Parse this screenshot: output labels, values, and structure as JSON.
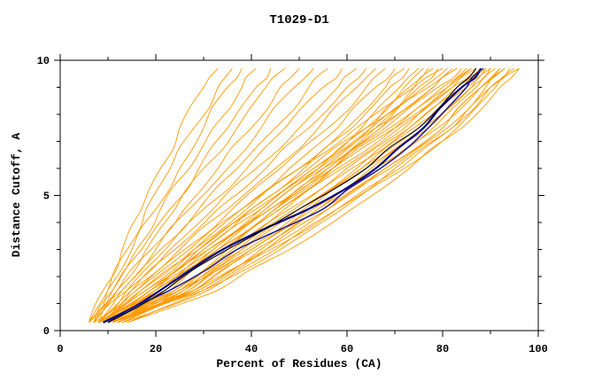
{
  "chart_data": {
    "type": "line",
    "title": "T1029-D1",
    "xlabel": "Percent of Residues (CA)",
    "ylabel": "Distance Cutoff, A",
    "xlim": [
      0,
      100
    ],
    "ylim": [
      0,
      10
    ],
    "x_major_ticks": [
      0,
      20,
      40,
      60,
      80,
      100
    ],
    "x_minor_step": 10,
    "y_major_ticks": [
      0,
      5,
      10
    ],
    "y_minor_step": 1,
    "grid": false,
    "legend": "none",
    "colors": {
      "model_lines": "#ff9900",
      "highlight_navy": "#000080",
      "highlight_navy2": "#1c1c9c",
      "highlight_black": "#000000"
    },
    "y_levels": [
      0.3,
      1.5,
      3,
      4.5,
      6,
      7.5,
      9,
      9.7
    ],
    "orange_series_x": [
      [
        6,
        9,
        13,
        17,
        21,
        25,
        30,
        33
      ],
      [
        6,
        10,
        14,
        18,
        23,
        28,
        33,
        36
      ],
      [
        7,
        10,
        15,
        20,
        25,
        30,
        35,
        38
      ],
      [
        7,
        11,
        16,
        21,
        27,
        32,
        38,
        41
      ],
      [
        6,
        11,
        17,
        23,
        29,
        35,
        41,
        44
      ],
      [
        8,
        12,
        18,
        24,
        30,
        37,
        43,
        47
      ],
      [
        7,
        12,
        19,
        26,
        33,
        40,
        46,
        50
      ],
      [
        8,
        13,
        20,
        27,
        35,
        42,
        49,
        53
      ],
      [
        6,
        13,
        21,
        29,
        37,
        45,
        52,
        56
      ],
      [
        8,
        14,
        22,
        30,
        39,
        47,
        55,
        59
      ],
      [
        7,
        14,
        23,
        32,
        41,
        50,
        58,
        62
      ],
      [
        9,
        15,
        24,
        33,
        43,
        52,
        60,
        64
      ],
      [
        8,
        15,
        25,
        35,
        45,
        54,
        62,
        66
      ],
      [
        9,
        16,
        26,
        36,
        46,
        56,
        64,
        68
      ],
      [
        7,
        16,
        27,
        38,
        48,
        58,
        66,
        70
      ],
      [
        10,
        17,
        28,
        39,
        50,
        60,
        68,
        72
      ],
      [
        8,
        17,
        29,
        40,
        51,
        61,
        69,
        73
      ],
      [
        9,
        18,
        30,
        42,
        53,
        63,
        71,
        75
      ],
      [
        10,
        19,
        31,
        43,
        54,
        64,
        72,
        76
      ],
      [
        8,
        19,
        32,
        44,
        55,
        65,
        73,
        77
      ],
      [
        11,
        20,
        33,
        45,
        56,
        66,
        74,
        78
      ],
      [
        9,
        20,
        34,
        46,
        57,
        67,
        75,
        79
      ],
      [
        9,
        18,
        28,
        38,
        50,
        62,
        74,
        80
      ],
      [
        10,
        20,
        30,
        40,
        52,
        64,
        76,
        81
      ],
      [
        8,
        19,
        29,
        41,
        53,
        65,
        77,
        82
      ],
      [
        10,
        21,
        31,
        42,
        54,
        66,
        78,
        83
      ],
      [
        11,
        22,
        33,
        44,
        56,
        68,
        79,
        84
      ],
      [
        9,
        21,
        32,
        43,
        55,
        67,
        78,
        83
      ],
      [
        10,
        23,
        34,
        45,
        57,
        69,
        80,
        85
      ],
      [
        12,
        24,
        35,
        46,
        58,
        70,
        81,
        86
      ],
      [
        9,
        22,
        33,
        45,
        57,
        70,
        81,
        86
      ],
      [
        11,
        25,
        36,
        48,
        60,
        72,
        82,
        87
      ],
      [
        10,
        24,
        36,
        47,
        59,
        71,
        82,
        87
      ],
      [
        12,
        26,
        38,
        50,
        62,
        73,
        83,
        88
      ],
      [
        11,
        25,
        37,
        49,
        61,
        73,
        84,
        88
      ],
      [
        13,
        27,
        39,
        51,
        63,
        74,
        84,
        89
      ],
      [
        10,
        26,
        38,
        50,
        63,
        75,
        85,
        89
      ],
      [
        12,
        28,
        40,
        52,
        64,
        76,
        86,
        90
      ],
      [
        11,
        27,
        40,
        53,
        65,
        77,
        86,
        90
      ],
      [
        13,
        29,
        42,
        54,
        66,
        78,
        87,
        91
      ],
      [
        12,
        28,
        41,
        54,
        67,
        79,
        88,
        92
      ],
      [
        14,
        30,
        43,
        56,
        68,
        80,
        88,
        92
      ],
      [
        11,
        29,
        43,
        56,
        69,
        81,
        89,
        93
      ],
      [
        13,
        31,
        45,
        58,
        70,
        82,
        90,
        94
      ],
      [
        12,
        30,
        46,
        59,
        72,
        83,
        91,
        95
      ],
      [
        14,
        33,
        48,
        61,
        73,
        84,
        92,
        96
      ],
      [
        9,
        25,
        40,
        55,
        68,
        80,
        88,
        93
      ],
      [
        8,
        28,
        44,
        58,
        71,
        82,
        90,
        96
      ]
    ],
    "highlighted_series": [
      {
        "name": "highlight-curve-navy-1",
        "color": "#000080",
        "width": 2.2,
        "x": [
          9,
          21,
          34,
          52,
          66,
          76,
          84,
          88
        ]
      },
      {
        "name": "highlight-curve-navy-2",
        "color": "#1c1c9c",
        "width": 1.5,
        "x": [
          10,
          23,
          37,
          55,
          67,
          77,
          85,
          88.5
        ]
      },
      {
        "name": "highlight-curve-black",
        "color": "#000000",
        "width": 1.1,
        "x": [
          10,
          22,
          35,
          50,
          64,
          75,
          83,
          87
        ]
      }
    ]
  }
}
